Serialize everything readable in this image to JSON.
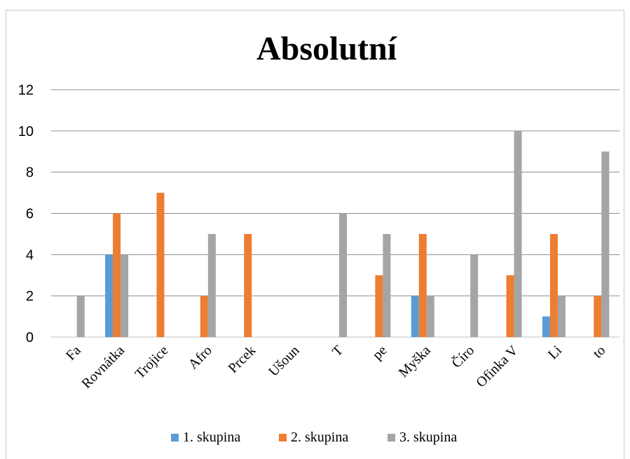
{
  "chart_data": {
    "type": "bar",
    "title": "Absolutní",
    "xlabel": "",
    "ylabel": "",
    "ylim": [
      0,
      12
    ],
    "yticks": [
      "0",
      "2",
      "4",
      "6",
      "8",
      "10",
      "12"
    ],
    "grid": true,
    "legend_position": "bottom",
    "categories": [
      "Fa",
      "Rovnátka",
      "Trojice",
      "Afro",
      "Prcek",
      "Ušoun",
      "T",
      "pe",
      "Myška",
      "Číro",
      "Ofinka V",
      "Li",
      "to"
    ],
    "series": [
      {
        "name": "1. skupina",
        "color": "#5b9bd5",
        "values": [
          0,
          4,
          0,
          0,
          0,
          0,
          0,
          0,
          2,
          0,
          0,
          1,
          0
        ]
      },
      {
        "name": "2. skupina",
        "color": "#ed7d31",
        "values": [
          0,
          6,
          7,
          2,
          5,
          0,
          0,
          3,
          5,
          0,
          3,
          5,
          2
        ]
      },
      {
        "name": "3. skupina",
        "color": "#a5a5a5",
        "values": [
          2,
          4,
          0,
          5,
          0,
          0,
          6,
          5,
          2,
          4,
          10,
          2,
          9
        ]
      }
    ]
  }
}
